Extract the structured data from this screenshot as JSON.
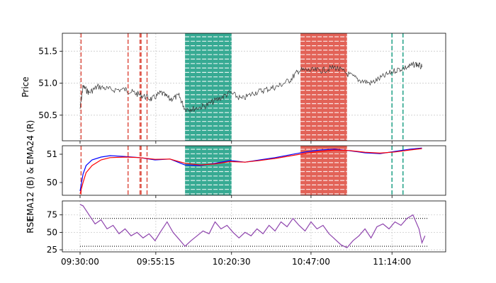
{
  "chart_data": {
    "type": "line",
    "x_axis": {
      "kind": "time",
      "range": [
        "09:30:00",
        "11:26:00"
      ],
      "tick_labels": [
        "09:30:00",
        "09:55:15",
        "10:20:30",
        "10:47:00",
        "11:14:00"
      ]
    },
    "event_lines": {
      "sell_color": "#e05a4e",
      "buy_color": "#2ca58d",
      "sell_times": [
        "09:30:20",
        "09:46:00",
        "09:50:00",
        "09:50:20",
        "09:52:20"
      ],
      "buy_times": [
        "11:14:00",
        "11:17:40"
      ]
    },
    "bands": [
      {
        "kind": "buy",
        "color": "#2ca58d",
        "start": "10:05:00",
        "end": "10:20:30"
      },
      {
        "kind": "sell",
        "color": "#e05a4e",
        "start": "10:43:30",
        "end": "10:59:00"
      }
    ],
    "panels": [
      {
        "name": "price",
        "ylabel": "Price",
        "ylim": [
          50.1,
          51.78
        ],
        "yticks": [
          50.5,
          51.0,
          51.5
        ],
        "ytick_labels": [
          "50.5",
          "51.0",
          "51.5"
        ],
        "series": [
          {
            "color": "#333333",
            "points": [
              [
                "09:30:00",
                50.6
              ],
              [
                "09:31:00",
                50.95
              ],
              [
                "09:33:00",
                50.85
              ],
              [
                "09:36:00",
                50.95
              ],
              [
                "09:40:00",
                50.9
              ],
              [
                "09:45:00",
                50.9
              ],
              [
                "09:48:00",
                50.85
              ],
              [
                "09:51:00",
                50.8
              ],
              [
                "09:54:00",
                50.75
              ],
              [
                "09:57:00",
                50.85
              ],
              [
                "10:00:00",
                50.75
              ],
              [
                "10:03:00",
                50.8
              ],
              [
                "10:05:00",
                50.6
              ],
              [
                "10:08:00",
                50.6
              ],
              [
                "10:12:00",
                50.65
              ],
              [
                "10:16:00",
                50.75
              ],
              [
                "10:20:00",
                50.85
              ],
              [
                "10:24:00",
                50.75
              ],
              [
                "10:28:00",
                50.85
              ],
              [
                "10:32:00",
                50.9
              ],
              [
                "10:36:00",
                50.95
              ],
              [
                "10:40:00",
                51.05
              ],
              [
                "10:43:00",
                51.2
              ],
              [
                "10:47:00",
                51.2
              ],
              [
                "10:51:00",
                51.2
              ],
              [
                "10:55:00",
                51.25
              ],
              [
                "10:59:00",
                51.15
              ],
              [
                "11:03:00",
                51.05
              ],
              [
                "11:07:00",
                51.0
              ],
              [
                "11:11:00",
                51.1
              ],
              [
                "11:15:00",
                51.2
              ],
              [
                "11:19:00",
                51.25
              ],
              [
                "11:22:00",
                51.3
              ],
              [
                "11:24:00",
                51.25
              ]
            ]
          }
        ]
      },
      {
        "name": "ema",
        "ylabel": "EMA12 (B) & EMA24 (R)",
        "ylim": [
          49.55,
          51.3
        ],
        "yticks": [
          50,
          51
        ],
        "ytick_labels": [
          "50",
          "51"
        ],
        "series": [
          {
            "color": "#0000ff",
            "points": [
              [
                "09:30:00",
                49.7
              ],
              [
                "09:31:00",
                50.3
              ],
              [
                "09:32:00",
                50.6
              ],
              [
                "09:34:00",
                50.8
              ],
              [
                "09:37:00",
                50.9
              ],
              [
                "09:40:00",
                50.95
              ],
              [
                "09:45:00",
                50.92
              ],
              [
                "09:50:00",
                50.88
              ],
              [
                "09:55:00",
                50.8
              ],
              [
                "10:00:00",
                50.83
              ],
              [
                "10:05:00",
                50.62
              ],
              [
                "10:10:00",
                50.6
              ],
              [
                "10:15:00",
                50.68
              ],
              [
                "10:20:00",
                50.78
              ],
              [
                "10:25:00",
                50.72
              ],
              [
                "10:30:00",
                50.8
              ],
              [
                "10:35:00",
                50.88
              ],
              [
                "10:40:00",
                50.98
              ],
              [
                "10:45:00",
                51.08
              ],
              [
                "10:50:00",
                51.15
              ],
              [
                "10:55:00",
                51.18
              ],
              [
                "11:00:00",
                51.12
              ],
              [
                "11:05:00",
                51.05
              ],
              [
                "11:10:00",
                51.02
              ],
              [
                "11:15:00",
                51.1
              ],
              [
                "11:20:00",
                51.18
              ],
              [
                "11:24:00",
                51.22
              ]
            ]
          },
          {
            "color": "#ff0000",
            "points": [
              [
                "09:30:00",
                49.6
              ],
              [
                "09:31:00",
                50.0
              ],
              [
                "09:32:00",
                50.35
              ],
              [
                "09:34:00",
                50.6
              ],
              [
                "09:37:00",
                50.8
              ],
              [
                "09:40:00",
                50.88
              ],
              [
                "09:45:00",
                50.9
              ],
              [
                "09:50:00",
                50.88
              ],
              [
                "09:55:00",
                50.82
              ],
              [
                "10:00:00",
                50.83
              ],
              [
                "10:05:00",
                50.68
              ],
              [
                "10:10:00",
                50.62
              ],
              [
                "10:15:00",
                50.66
              ],
              [
                "10:20:00",
                50.74
              ],
              [
                "10:25:00",
                50.72
              ],
              [
                "10:30:00",
                50.78
              ],
              [
                "10:35:00",
                50.85
              ],
              [
                "10:40:00",
                50.94
              ],
              [
                "10:45:00",
                51.03
              ],
              [
                "10:50:00",
                51.1
              ],
              [
                "10:55:00",
                51.15
              ],
              [
                "11:00:00",
                51.13
              ],
              [
                "11:05:00",
                51.07
              ],
              [
                "11:10:00",
                51.04
              ],
              [
                "11:15:00",
                51.08
              ],
              [
                "11:20:00",
                51.15
              ],
              [
                "11:24:00",
                51.2
              ]
            ]
          }
        ]
      },
      {
        "name": "rsi",
        "ylabel": "RSI",
        "ylim": [
          22,
          95
        ],
        "yticks": [
          25,
          50,
          75
        ],
        "ytick_labels": [
          "25",
          "50",
          "75"
        ],
        "guides": [
          70,
          30
        ],
        "series": [
          {
            "color": "#8e44ad",
            "points": [
              [
                "09:30:00",
                90
              ],
              [
                "09:31:00",
                88
              ],
              [
                "09:33:00",
                75
              ],
              [
                "09:35:00",
                62
              ],
              [
                "09:37:00",
                68
              ],
              [
                "09:39:00",
                55
              ],
              [
                "09:41:00",
                60
              ],
              [
                "09:43:00",
                48
              ],
              [
                "09:45:00",
                55
              ],
              [
                "09:47:00",
                45
              ],
              [
                "09:49:00",
                50
              ],
              [
                "09:51:00",
                42
              ],
              [
                "09:53:00",
                48
              ],
              [
                "09:55:00",
                38
              ],
              [
                "09:57:00",
                52
              ],
              [
                "09:59:00",
                65
              ],
              [
                "10:01:00",
                50
              ],
              [
                "10:03:00",
                40
              ],
              [
                "10:05:00",
                30
              ],
              [
                "10:07:00",
                38
              ],
              [
                "10:09:00",
                45
              ],
              [
                "10:11:00",
                52
              ],
              [
                "10:13:00",
                48
              ],
              [
                "10:15:00",
                65
              ],
              [
                "10:17:00",
                55
              ],
              [
                "10:19:00",
                60
              ],
              [
                "10:21:00",
                50
              ],
              [
                "10:23:00",
                42
              ],
              [
                "10:25:00",
                50
              ],
              [
                "10:27:00",
                45
              ],
              [
                "10:29:00",
                55
              ],
              [
                "10:31:00",
                48
              ],
              [
                "10:33:00",
                60
              ],
              [
                "10:35:00",
                52
              ],
              [
                "10:37:00",
                65
              ],
              [
                "10:39:00",
                58
              ],
              [
                "10:41:00",
                70
              ],
              [
                "10:43:00",
                60
              ],
              [
                "10:45:00",
                52
              ],
              [
                "10:47:00",
                65
              ],
              [
                "10:49:00",
                55
              ],
              [
                "10:51:00",
                60
              ],
              [
                "10:53:00",
                48
              ],
              [
                "10:55:00",
                40
              ],
              [
                "10:57:00",
                32
              ],
              [
                "10:59:00",
                28
              ],
              [
                "11:01:00",
                38
              ],
              [
                "11:03:00",
                45
              ],
              [
                "11:05:00",
                55
              ],
              [
                "11:07:00",
                42
              ],
              [
                "11:09:00",
                58
              ],
              [
                "11:11:00",
                62
              ],
              [
                "11:13:00",
                55
              ],
              [
                "11:15:00",
                65
              ],
              [
                "11:17:00",
                60
              ],
              [
                "11:19:00",
                70
              ],
              [
                "11:21:00",
                75
              ],
              [
                "11:23:00",
                55
              ],
              [
                "11:24:00",
                35
              ],
              [
                "11:25:00",
                45
              ]
            ]
          }
        ]
      }
    ]
  }
}
